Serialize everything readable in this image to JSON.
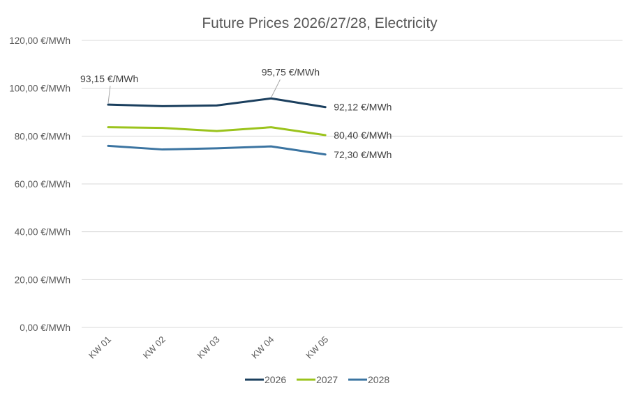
{
  "chart_data": {
    "type": "line",
    "title": "Future Prices 2026/27/28, Electricity",
    "xlabel": "",
    "ylabel": "",
    "categories": [
      "KW 01",
      "KW 02",
      "KW 03",
      "KW 04",
      "KW 05"
    ],
    "ylim": [
      0,
      120
    ],
    "yticks": [
      0,
      20,
      40,
      60,
      80,
      100,
      120
    ],
    "ytick_labels": [
      "0,00 €/MWh",
      "20,00 €/MWh",
      "40,00 €/MWh",
      "60,00 €/MWh",
      "80,00 €/MWh",
      "100,00 €/MWh",
      "120,00 €/MWh"
    ],
    "grid": true,
    "legend_position": "bottom",
    "series": [
      {
        "name": "2026",
        "color": "#1b3f5e",
        "values": [
          93.15,
          92.5,
          92.8,
          95.75,
          92.12
        ]
      },
      {
        "name": "2027",
        "color": "#9bc31c",
        "values": [
          83.7,
          83.4,
          82.1,
          83.7,
          80.4
        ]
      },
      {
        "name": "2028",
        "color": "#3b74a1",
        "values": [
          75.9,
          74.4,
          74.9,
          75.7,
          72.3
        ]
      }
    ],
    "data_labels": [
      {
        "series": 0,
        "index": 0,
        "text": "93,15 €/MWh",
        "placement": "above-left",
        "leader_line": true
      },
      {
        "series": 0,
        "index": 3,
        "text": "95,75 €/MWh",
        "placement": "above",
        "leader_line": true
      },
      {
        "series": 0,
        "index": 4,
        "text": "92,12 €/MWh",
        "placement": "right",
        "leader_line": false
      },
      {
        "series": 1,
        "index": 4,
        "text": "80,40 €/MWh",
        "placement": "right",
        "leader_line": false
      },
      {
        "series": 2,
        "index": 4,
        "text": "72,30 €/MWh",
        "placement": "right",
        "leader_line": false
      }
    ]
  }
}
